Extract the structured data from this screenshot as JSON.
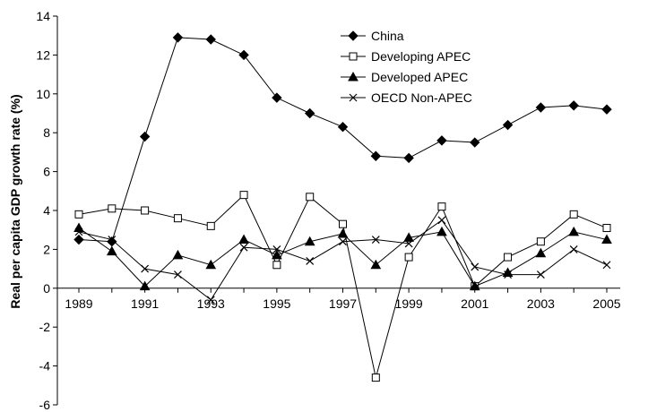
{
  "chart_data": {
    "type": "line",
    "title": "",
    "xlabel": "",
    "ylabel": "Real per capita GDP growth rate (%)",
    "x": [
      1989,
      1990,
      1991,
      1992,
      1993,
      1994,
      1995,
      1996,
      1997,
      1998,
      1999,
      2000,
      2001,
      2002,
      2003,
      2004,
      2005
    ],
    "x_tick_labels": [
      "1989",
      "1991",
      "1993",
      "1995",
      "1997",
      "1999",
      "2001",
      "2003",
      "2005"
    ],
    "x_tick_values": [
      1989,
      1991,
      1993,
      1995,
      1997,
      1999,
      2001,
      2003,
      2005
    ],
    "y_ticks": [
      -6,
      -4,
      -2,
      0,
      2,
      4,
      6,
      8,
      10,
      12,
      14
    ],
    "y_tick_labels": [
      "-6",
      "-4",
      "-2",
      "0",
      "2",
      "4",
      "6",
      "8",
      "10",
      "12",
      "14"
    ],
    "ylim": [
      -6,
      14
    ],
    "xlim": [
      1989,
      2005
    ],
    "grid": false,
    "legend_position": "top-center",
    "series": [
      {
        "name": "China",
        "marker": "diamond",
        "color": "#000000",
        "values": [
          2.5,
          2.4,
          7.8,
          12.9,
          12.8,
          12.0,
          9.8,
          9.0,
          8.3,
          6.8,
          6.7,
          7.6,
          7.5,
          8.4,
          9.3,
          9.4,
          9.2
        ]
      },
      {
        "name": "Developing APEC",
        "marker": "square-open",
        "color": "#000000",
        "values": [
          3.8,
          4.1,
          4.0,
          3.6,
          3.2,
          4.8,
          1.2,
          4.7,
          3.3,
          -4.6,
          1.6,
          4.2,
          0.1,
          1.6,
          2.4,
          3.8,
          3.1
        ]
      },
      {
        "name": "Developed APEC",
        "marker": "triangle",
        "color": "#000000",
        "values": [
          3.1,
          1.9,
          0.1,
          1.7,
          1.2,
          2.5,
          1.7,
          2.4,
          2.8,
          1.2,
          2.6,
          2.9,
          0.1,
          0.8,
          1.8,
          2.9,
          2.5
        ]
      },
      {
        "name": "OECD Non-APEC",
        "marker": "x",
        "color": "#000000",
        "values": [
          2.9,
          2.5,
          1.0,
          0.7,
          -0.6,
          2.1,
          2.0,
          1.4,
          2.4,
          2.5,
          2.3,
          3.5,
          1.1,
          0.7,
          0.7,
          2.0,
          1.2
        ]
      }
    ]
  }
}
